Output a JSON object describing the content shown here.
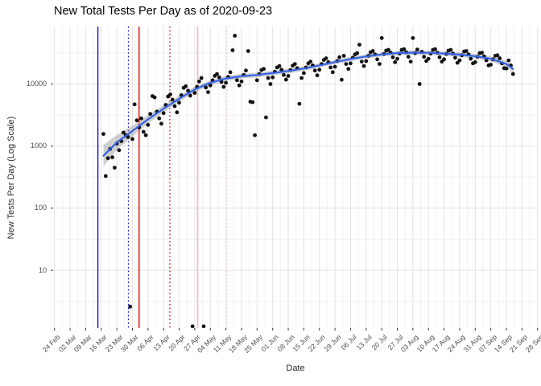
{
  "title": "New Total Tests Per Day as of 2020-09-23",
  "axes": {
    "x_label": "Date",
    "y_label": "New Tests Per Day (Log Scale)",
    "x_ticks": [
      "24 Feb",
      "02 Mar",
      "09 Mar",
      "16 Mar",
      "23 Mar",
      "30 Mar",
      "06 Apr",
      "13 Apr",
      "20 Apr",
      "27 Apr",
      "04 May",
      "11 May",
      "18 May",
      "25 May",
      "01 Jun",
      "08 Jun",
      "15 Jun",
      "22 Jun",
      "29 Jun",
      "06 Jul",
      "13 Jul",
      "20 Jul",
      "27 Jul",
      "03 Aug",
      "10 Aug",
      "17 Aug",
      "24 Aug",
      "31 Aug",
      "07 Sep",
      "14 Sep",
      "21 Sep",
      "28 Sep"
    ],
    "y_ticks": [
      "10",
      "100",
      "1000",
      "10000"
    ]
  },
  "colors": {
    "title": "#000000",
    "axis_text": "#4d4d4d",
    "grid_major": "#e3e3e3",
    "grid_minor": "#f1f1f1",
    "point": "#121212",
    "smooth_line": "#3563e9",
    "ribbon": "rgba(150,150,150,0.45)",
    "tick_mark": "#333333"
  },
  "chart_data": {
    "type": "scatter",
    "title": "New Total Tests Per Day as of 2020-09-23",
    "xlabel": "Date",
    "ylabel": "New Tests Per Day (Log Scale)",
    "log_scale_y": true,
    "grid": true,
    "day_zero": "2020-02-24",
    "x_tick_interval_days": 7,
    "ylim": [
      1.1,
      85000
    ],
    "points": [
      [
        22,
        1570
      ],
      [
        23,
        330
      ],
      [
        24,
        640
      ],
      [
        25,
        900
      ],
      [
        26,
        660
      ],
      [
        27,
        450
      ],
      [
        28,
        1100
      ],
      [
        29,
        860
      ],
      [
        30,
        1200
      ],
      [
        31,
        1650
      ],
      [
        32,
        1500
      ],
      [
        33,
        1400
      ],
      [
        34,
        2.6
      ],
      [
        35,
        1300
      ],
      [
        36,
        4700
      ],
      [
        37,
        2600
      ],
      [
        38,
        2000
      ],
      [
        39,
        2800
      ],
      [
        40,
        1700
      ],
      [
        41,
        1500
      ],
      [
        42,
        2200
      ],
      [
        43,
        3300
      ],
      [
        44,
        6400
      ],
      [
        45,
        6100
      ],
      [
        46,
        3600
      ],
      [
        47,
        2800
      ],
      [
        48,
        2300
      ],
      [
        49,
        3400
      ],
      [
        50,
        4600
      ],
      [
        51,
        6300
      ],
      [
        52,
        6800
      ],
      [
        53,
        5600
      ],
      [
        54,
        4400
      ],
      [
        55,
        3500
      ],
      [
        56,
        5000
      ],
      [
        57,
        6600
      ],
      [
        58,
        8700
      ],
      [
        59,
        9200
      ],
      [
        60,
        7800
      ],
      [
        61,
        6500
      ],
      [
        62,
        1.25
      ],
      [
        63,
        7200
      ],
      [
        64,
        9000
      ],
      [
        65,
        11000
      ],
      [
        66,
        12500
      ],
      [
        67,
        1.25
      ],
      [
        68,
        8800
      ],
      [
        69,
        7400
      ],
      [
        70,
        9500
      ],
      [
        71,
        11500
      ],
      [
        72,
        13500
      ],
      [
        73,
        14500
      ],
      [
        74,
        12800
      ],
      [
        75,
        10800
      ],
      [
        76,
        9000
      ],
      [
        77,
        10500
      ],
      [
        78,
        13000
      ],
      [
        79,
        15500
      ],
      [
        80,
        35000
      ],
      [
        81,
        60000
      ],
      [
        82,
        11500
      ],
      [
        83,
        9500
      ],
      [
        84,
        11000
      ],
      [
        85,
        14000
      ],
      [
        86,
        16500
      ],
      [
        87,
        34000
      ],
      [
        88,
        5200
      ],
      [
        89,
        5100
      ],
      [
        90,
        1500
      ],
      [
        91,
        11500
      ],
      [
        92,
        14500
      ],
      [
        93,
        16800
      ],
      [
        94,
        17500
      ],
      [
        95,
        2900
      ],
      [
        96,
        12500
      ],
      [
        97,
        10000
      ],
      [
        98,
        12800
      ],
      [
        99,
        15800
      ],
      [
        100,
        18500
      ],
      [
        101,
        19500
      ],
      [
        102,
        17000
      ],
      [
        103,
        14000
      ],
      [
        104,
        11800
      ],
      [
        105,
        13500
      ],
      [
        106,
        16800
      ],
      [
        107,
        19800
      ],
      [
        108,
        21000
      ],
      [
        109,
        18000
      ],
      [
        110,
        4800
      ],
      [
        111,
        12500
      ],
      [
        112,
        15000
      ],
      [
        113,
        18500
      ],
      [
        114,
        21500
      ],
      [
        115,
        23000
      ],
      [
        116,
        20000
      ],
      [
        117,
        16500
      ],
      [
        118,
        13800
      ],
      [
        119,
        17000
      ],
      [
        120,
        21000
      ],
      [
        121,
        24500
      ],
      [
        122,
        26000
      ],
      [
        123,
        22500
      ],
      [
        124,
        18500
      ],
      [
        125,
        15500
      ],
      [
        126,
        19000
      ],
      [
        127,
        23500
      ],
      [
        128,
        27000
      ],
      [
        129,
        11700
      ],
      [
        130,
        28500
      ],
      [
        131,
        21000
      ],
      [
        132,
        17500
      ],
      [
        133,
        21500
      ],
      [
        134,
        26500
      ],
      [
        135,
        30000
      ],
      [
        136,
        31500
      ],
      [
        137,
        43000
      ],
      [
        138,
        23000
      ],
      [
        139,
        19500
      ],
      [
        140,
        23500
      ],
      [
        141,
        28500
      ],
      [
        142,
        32500
      ],
      [
        143,
        34000
      ],
      [
        144,
        30000
      ],
      [
        145,
        25000
      ],
      [
        146,
        21000
      ],
      [
        147,
        55000
      ],
      [
        148,
        30500
      ],
      [
        149,
        34500
      ],
      [
        150,
        35500
      ],
      [
        151,
        32000
      ],
      [
        152,
        27000
      ],
      [
        153,
        22500
      ],
      [
        154,
        25500
      ],
      [
        155,
        31000
      ],
      [
        156,
        35500
      ],
      [
        157,
        36500
      ],
      [
        158,
        32500
      ],
      [
        159,
        27500
      ],
      [
        160,
        23000
      ],
      [
        161,
        55000
      ],
      [
        162,
        31500
      ],
      [
        163,
        36000
      ],
      [
        164,
        10000
      ],
      [
        165,
        33000
      ],
      [
        166,
        27500
      ],
      [
        167,
        23500
      ],
      [
        168,
        25500
      ],
      [
        169,
        31000
      ],
      [
        170,
        35500
      ],
      [
        171,
        36500
      ],
      [
        172,
        32000
      ],
      [
        173,
        27000
      ],
      [
        174,
        23000
      ],
      [
        175,
        25000
      ],
      [
        176,
        30500
      ],
      [
        177,
        34500
      ],
      [
        178,
        35500
      ],
      [
        179,
        31000
      ],
      [
        180,
        26500
      ],
      [
        181,
        22000
      ],
      [
        182,
        24000
      ],
      [
        183,
        29000
      ],
      [
        184,
        33500
      ],
      [
        185,
        34000
      ],
      [
        186,
        30000
      ],
      [
        187,
        25500
      ],
      [
        188,
        21500
      ],
      [
        189,
        22500
      ],
      [
        190,
        27500
      ],
      [
        191,
        31500
      ],
      [
        192,
        32000
      ],
      [
        193,
        28000
      ],
      [
        194,
        24000
      ],
      [
        195,
        20000
      ],
      [
        196,
        20500
      ],
      [
        197,
        25000
      ],
      [
        198,
        28500
      ],
      [
        199,
        29000
      ],
      [
        200,
        26000
      ],
      [
        201,
        21500
      ],
      [
        202,
        18000
      ],
      [
        203,
        17800
      ],
      [
        204,
        24000
      ],
      [
        205,
        20000
      ],
      [
        206,
        14500
      ]
    ],
    "smooth": {
      "anchors": [
        [
          22,
          700
        ],
        [
          28,
          1150
        ],
        [
          35,
          1750
        ],
        [
          42,
          2700
        ],
        [
          49,
          4000
        ],
        [
          56,
          5800
        ],
        [
          63,
          8200
        ],
        [
          70,
          10500
        ],
        [
          77,
          12300
        ],
        [
          84,
          13300
        ],
        [
          91,
          14000
        ],
        [
          98,
          15000
        ],
        [
          105,
          16200
        ],
        [
          112,
          17800
        ],
        [
          119,
          20000
        ],
        [
          126,
          22600
        ],
        [
          133,
          25300
        ],
        [
          140,
          27800
        ],
        [
          147,
          30000
        ],
        [
          154,
          31500
        ],
        [
          161,
          32000
        ],
        [
          168,
          31800
        ],
        [
          175,
          31000
        ],
        [
          182,
          29800
        ],
        [
          189,
          28000
        ],
        [
          196,
          25500
        ],
        [
          203,
          21000
        ],
        [
          206,
          17500
        ]
      ],
      "band_factor": [
        1.5,
        1.32,
        1.22,
        1.17,
        1.14,
        1.12,
        1.11,
        1.1,
        1.1,
        1.09,
        1.09,
        1.09,
        1.09,
        1.09,
        1.08,
        1.08,
        1.08,
        1.08,
        1.08,
        1.08,
        1.08,
        1.08,
        1.08,
        1.09,
        1.09,
        1.1,
        1.12,
        1.16
      ]
    },
    "vlines": [
      {
        "approx_date": "2020-03-15",
        "day": 19.5,
        "color": "#0202c8",
        "style": "solid",
        "width": 1.3
      },
      {
        "approx_date": "2020-03-29",
        "day": 33.2,
        "color": "#0202c8",
        "style": "dotted",
        "width": 1.3
      },
      {
        "approx_date": "2020-04-02",
        "day": 38.0,
        "color": "#e00000",
        "style": "solid",
        "width": 1.3
      },
      {
        "approx_date": "2020-04-16",
        "day": 51.8,
        "color": "#e00000",
        "style": "dotted",
        "width": 1.3
      },
      {
        "approx_date": "2020-04-28",
        "day": 64.3,
        "color": "#ffb3be",
        "style": "solid",
        "width": 1.6
      },
      {
        "approx_date": "2020-05-12",
        "day": 77.5,
        "color": "#ffc2cc",
        "style": "dotted",
        "width": 1.3
      }
    ]
  }
}
